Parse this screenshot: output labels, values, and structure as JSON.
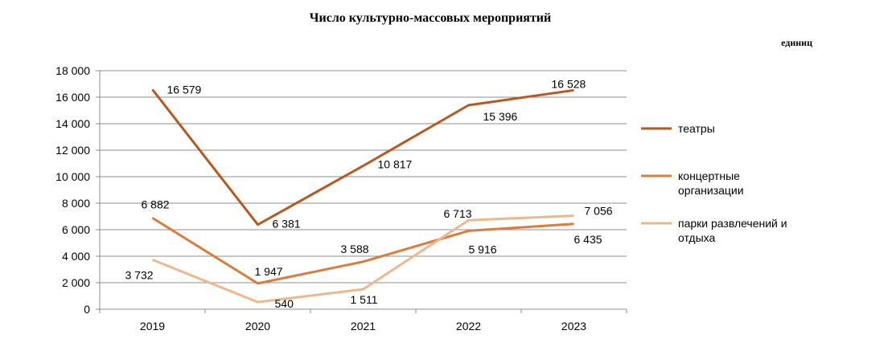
{
  "chart_data": {
    "type": "line",
    "title": "Число культурно-массовых мероприятий",
    "unit_label": "единиц",
    "categories": [
      "2019",
      "2020",
      "2021",
      "2022",
      "2023"
    ],
    "ylim": [
      0,
      18000
    ],
    "yticks": [
      0,
      2000,
      4000,
      6000,
      8000,
      10000,
      12000,
      14000,
      16000,
      18000
    ],
    "ytick_labels": [
      "0",
      "2 000",
      "4 000",
      "6 000",
      "8 000",
      "10 000",
      "12 000",
      "14 000",
      "16 000",
      "18 000"
    ],
    "grid": true,
    "legend_position": "right",
    "series": [
      {
        "name": "театры",
        "legend_lines": [
          "театры"
        ],
        "color": "#B8581F",
        "values": [
          16579,
          6381,
          10817,
          15396,
          16528
        ],
        "labels": [
          "16 579",
          "6 381",
          "10 817",
          "15 396",
          "16 528"
        ]
      },
      {
        "name": "концертные организации",
        "legend_lines": [
          "концертные",
          "организации"
        ],
        "color": "#DC7C3C",
        "values": [
          6882,
          1947,
          3588,
          5916,
          6435
        ],
        "labels": [
          "6 882",
          "1 947",
          "3 588",
          "5 916",
          "6 435"
        ]
      },
      {
        "name": "парки развлечений и отдыха",
        "legend_lines": [
          "парки развлечений  и",
          "отдыха"
        ],
        "color": "#ECB98E",
        "values": [
          3732,
          540,
          1511,
          6713,
          7056
        ],
        "labels": [
          "3 732",
          "540",
          "1 511",
          "6 713",
          "7 056"
        ]
      }
    ]
  }
}
